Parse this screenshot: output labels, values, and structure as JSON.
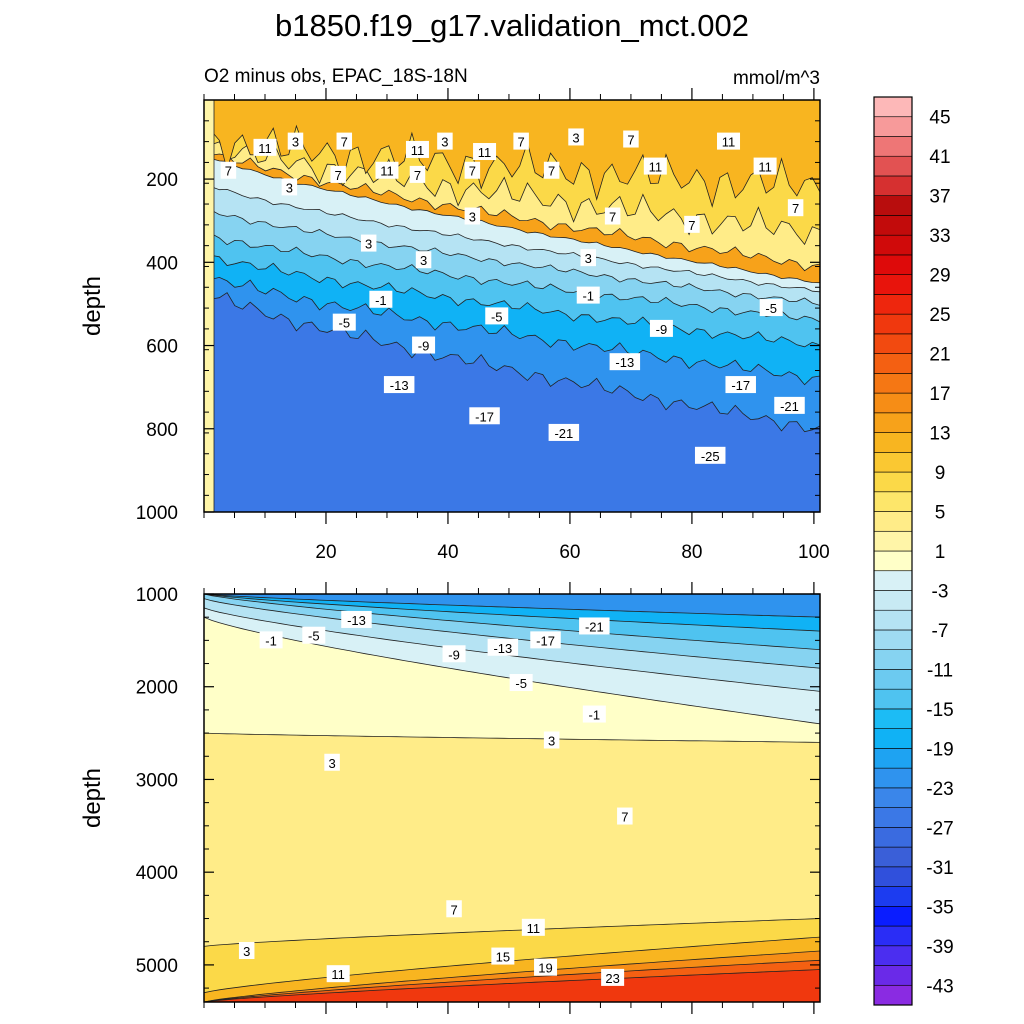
{
  "page": {
    "title": "b1850.f19_g17.validation_mct.002"
  },
  "chart_data": [
    {
      "type": "heatmap",
      "panel": "upper",
      "title": "O2 minus obs, EPAC_18S-18N",
      "units_label": "mmol/m^3",
      "xlabel": "",
      "ylabel": "depth",
      "xlim": [
        0,
        101
      ],
      "ylim": [
        1000,
        10
      ],
      "x_ticks": [
        20,
        40,
        60,
        80,
        100
      ],
      "x_tick_labels": [
        "20",
        "40",
        "60",
        "80",
        "100"
      ],
      "y_ticks": [
        200,
        400,
        600,
        800,
        1000
      ],
      "y_tick_labels": [
        "200",
        "400",
        "600",
        "800",
        "1000"
      ],
      "contour_levels": [
        {
          "value": -25,
          "depth_left": 470,
          "depth_right": 800,
          "wiggle": 14
        },
        {
          "value": -21,
          "depth_left": 430,
          "depth_right": 680,
          "wiggle": 12
        },
        {
          "value": -17,
          "depth_left": 380,
          "depth_right": 600,
          "wiggle": 10
        },
        {
          "value": -13,
          "depth_left": 330,
          "depth_right": 540,
          "wiggle": 8
        },
        {
          "value": -9,
          "depth_left": 270,
          "depth_right": 500,
          "wiggle": 6
        },
        {
          "value": -5,
          "depth_left": 210,
          "depth_right": 470,
          "wiggle": 4
        },
        {
          "value": -1,
          "depth_left": 140,
          "depth_right": 450,
          "wiggle": 3
        },
        {
          "value": 3,
          "depth_left": 130,
          "depth_right": 410,
          "wiggle": 10
        },
        {
          "value": 7,
          "depth_left": 115,
          "depth_right": 330,
          "wiggle": 28
        },
        {
          "value": 11,
          "depth_left": 105,
          "depth_right": 220,
          "wiggle": 40
        }
      ],
      "contour_labels": [
        {
          "text": "11",
          "x": 10,
          "y": 125
        },
        {
          "text": "3",
          "x": 15,
          "y": 110
        },
        {
          "text": "7",
          "x": 23,
          "y": 110
        },
        {
          "text": "3",
          "x": 39.5,
          "y": 110
        },
        {
          "text": "11",
          "x": 35,
          "y": 130
        },
        {
          "text": "11",
          "x": 46,
          "y": 135
        },
        {
          "text": "7",
          "x": 52,
          "y": 110
        },
        {
          "text": "3",
          "x": 61,
          "y": 100
        },
        {
          "text": "7",
          "x": 70,
          "y": 105
        },
        {
          "text": "11",
          "x": 86,
          "y": 110
        },
        {
          "text": "7",
          "x": 4,
          "y": 180
        },
        {
          "text": "11",
          "x": 30,
          "y": 180
        },
        {
          "text": "7",
          "x": 22,
          "y": 190
        },
        {
          "text": "7",
          "x": 35,
          "y": 190
        },
        {
          "text": "7",
          "x": 44,
          "y": 180
        },
        {
          "text": "7",
          "x": 57,
          "y": 180
        },
        {
          "text": "11",
          "x": 74,
          "y": 170
        },
        {
          "text": "11",
          "x": 92,
          "y": 170
        },
        {
          "text": "3",
          "x": 14,
          "y": 220
        },
        {
          "text": "3",
          "x": 44,
          "y": 290
        },
        {
          "text": "7",
          "x": 67,
          "y": 290
        },
        {
          "text": "7",
          "x": 80,
          "y": 310
        },
        {
          "text": "7",
          "x": 97,
          "y": 270
        },
        {
          "text": "3",
          "x": 27,
          "y": 355
        },
        {
          "text": "3",
          "x": 36,
          "y": 395
        },
        {
          "text": "3",
          "x": 63,
          "y": 390
        },
        {
          "text": "-1",
          "x": 29,
          "y": 490
        },
        {
          "text": "-1",
          "x": 63,
          "y": 480
        },
        {
          "text": "-5",
          "x": 23,
          "y": 545
        },
        {
          "text": "-5",
          "x": 48,
          "y": 530
        },
        {
          "text": "-5",
          "x": 93,
          "y": 510
        },
        {
          "text": "-9",
          "x": 36,
          "y": 600
        },
        {
          "text": "-9",
          "x": 75,
          "y": 560
        },
        {
          "text": "-13",
          "x": 32,
          "y": 695
        },
        {
          "text": "-13",
          "x": 69,
          "y": 640
        },
        {
          "text": "-17",
          "x": 46,
          "y": 770
        },
        {
          "text": "-17",
          "x": 88,
          "y": 695
        },
        {
          "text": "-21",
          "x": 59,
          "y": 810
        },
        {
          "text": "-21",
          "x": 96,
          "y": 745
        },
        {
          "text": "-25",
          "x": 83,
          "y": 865
        }
      ]
    },
    {
      "type": "heatmap",
      "panel": "lower",
      "xlabel": "",
      "ylabel": "depth",
      "xlim": [
        0,
        101
      ],
      "ylim": [
        5400,
        1000
      ],
      "y_ticks": [
        1000,
        2000,
        3000,
        4000,
        5000
      ],
      "y_tick_labels": [
        "1000",
        "2000",
        "3000",
        "4000",
        "5000"
      ],
      "contour_levels": [
        {
          "value": -21,
          "depth_left": 1000,
          "depth_right": 1250
        },
        {
          "value": -17,
          "depth_left": 1000,
          "depth_right": 1400
        },
        {
          "value": -13,
          "depth_left": 1000,
          "depth_right": 1600
        },
        {
          "value": -9,
          "depth_left": 1050,
          "depth_right": 1800
        },
        {
          "value": -5,
          "depth_left": 1150,
          "depth_right": 2050
        },
        {
          "value": -1,
          "depth_left": 1250,
          "depth_right": 2400
        },
        {
          "value": 3,
          "depth_left": 2500,
          "depth_right": 2600
        },
        {
          "value": 7,
          "depth_left": 4800,
          "depth_right": 4500
        },
        {
          "value": 11,
          "depth_left": 5300,
          "depth_right": 4700
        },
        {
          "value": 15,
          "depth_left": 5400,
          "depth_right": 4850
        },
        {
          "value": 19,
          "depth_left": 5400,
          "depth_right": 4950
        },
        {
          "value": 23,
          "depth_left": 5400,
          "depth_right": 5050
        }
      ],
      "contour_labels": [
        {
          "text": "-1",
          "x": 11,
          "y": 1500
        },
        {
          "text": "-5",
          "x": 18,
          "y": 1450
        },
        {
          "text": "-13",
          "x": 25,
          "y": 1280
        },
        {
          "text": "-9",
          "x": 41,
          "y": 1650
        },
        {
          "text": "-13",
          "x": 49,
          "y": 1580
        },
        {
          "text": "-17",
          "x": 56,
          "y": 1500
        },
        {
          "text": "-21",
          "x": 64,
          "y": 1350
        },
        {
          "text": "-5",
          "x": 52,
          "y": 1960
        },
        {
          "text": "-1",
          "x": 64,
          "y": 2300
        },
        {
          "text": "3",
          "x": 57,
          "y": 2580
        },
        {
          "text": "3",
          "x": 21,
          "y": 2820
        },
        {
          "text": "7",
          "x": 69,
          "y": 3400
        },
        {
          "text": "7",
          "x": 41,
          "y": 4400
        },
        {
          "text": "11",
          "x": 54,
          "y": 4600
        },
        {
          "text": "15",
          "x": 49,
          "y": 4910
        },
        {
          "text": "19",
          "x": 56,
          "y": 5030
        },
        {
          "text": "23",
          "x": 67,
          "y": 5140
        },
        {
          "text": "11",
          "x": 22,
          "y": 5100
        },
        {
          "text": "3",
          "x": 7,
          "y": 4850
        }
      ]
    }
  ],
  "colorbar": {
    "levels": [
      -45,
      -43,
      -41,
      -39,
      -37,
      -35,
      -33,
      -31,
      -29,
      -27,
      -25,
      -23,
      -21,
      -19,
      -17,
      -15,
      -13,
      -11,
      -9,
      -7,
      -5,
      -3,
      -1,
      1,
      3,
      5,
      7,
      9,
      11,
      13,
      15,
      17,
      19,
      21,
      23,
      25,
      27,
      29,
      31,
      33,
      35,
      37,
      39,
      41,
      43,
      45,
      47
    ],
    "colors": [
      "#8a2be2",
      "#6a2ae8",
      "#4b2ef0",
      "#2a2df6",
      "#0a1dff",
      "#1c3cf0",
      "#3050dc",
      "#3a5fd8",
      "#3a6be0",
      "#3b78e6",
      "#3a86ea",
      "#2f93ee",
      "#1ea3f2",
      "#10b2f5",
      "#1cbcf5",
      "#4fc3f0",
      "#6ccaf0",
      "#86d3f1",
      "#9fdbf2",
      "#b5e3f3",
      "#c8eaf4",
      "#d8f1f6",
      "#ffffc8",
      "#fff5a8",
      "#ffec88",
      "#fde66a",
      "#fbd948",
      "#fac832",
      "#f8b520",
      "#f7a21a",
      "#f68d16",
      "#f57714",
      "#f46012",
      "#f24a10",
      "#f0380e",
      "#ee260d",
      "#e8140c",
      "#de0a0a",
      "#d00a0a",
      "#c20b0b",
      "#b80d0d",
      "#d63030",
      "#e25252",
      "#ee7676",
      "#f79a9a",
      "#fdb8b8"
    ],
    "tick_labels": [
      "-43",
      "-39",
      "-35",
      "-31",
      "-27",
      "-23",
      "-19",
      "-15",
      "-11",
      "-7",
      "-3",
      "1",
      "5",
      "9",
      "13",
      "17",
      "21",
      "25",
      "29",
      "33",
      "37",
      "41",
      "45"
    ]
  }
}
